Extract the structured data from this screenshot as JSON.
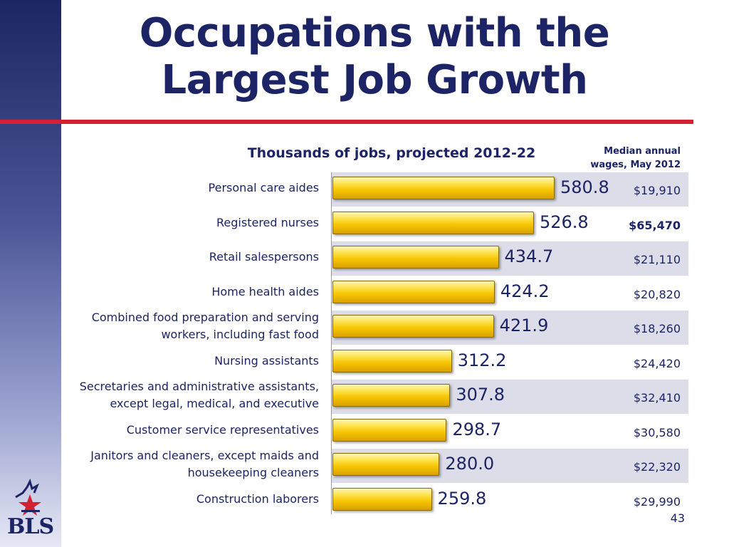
{
  "slide": {
    "title_line1": "Occupations with the",
    "title_line2": "Largest Job Growth",
    "page_number": "43",
    "logo_text": "BLS"
  },
  "chart_data": {
    "type": "bar",
    "orientation": "horizontal",
    "title": "Thousands of jobs, projected 2012-22",
    "categories": [
      "Personal care aides",
      "Registered nurses",
      "Retail salespersons",
      "Home health aides",
      "Combined food preparation and serving workers, including fast food",
      "Nursing assistants",
      "Secretaries and administrative assistants, except legal, medical, and executive",
      "Customer service representatives",
      "Janitors and cleaners, except maids and housekeeping cleaners",
      "Construction laborers"
    ],
    "values": [
      580.8,
      526.8,
      434.7,
      424.2,
      421.9,
      312.2,
      307.8,
      298.7,
      280.0,
      259.8
    ],
    "value_labels": [
      "580.8",
      "526.8",
      "434.7",
      "424.2",
      "421.9",
      "312.2",
      "307.8",
      "298.7",
      "280.0",
      "259.8"
    ],
    "bar_color": "#f6c400",
    "band_color": "#dcdde8",
    "xlim": [
      0,
      900
    ],
    "wage_column": {
      "header_line1": "Median annual",
      "header_line2": "wages, May 2012",
      "values": [
        "$19,910",
        "$65,470",
        "$21,110",
        "$20,820",
        "$18,260",
        "$24,420",
        "$32,410",
        "$30,580",
        "$22,320",
        "$29,990"
      ],
      "highlighted_index": 1
    }
  },
  "colors": {
    "title": "#1c2466",
    "rule": "#d42033"
  }
}
